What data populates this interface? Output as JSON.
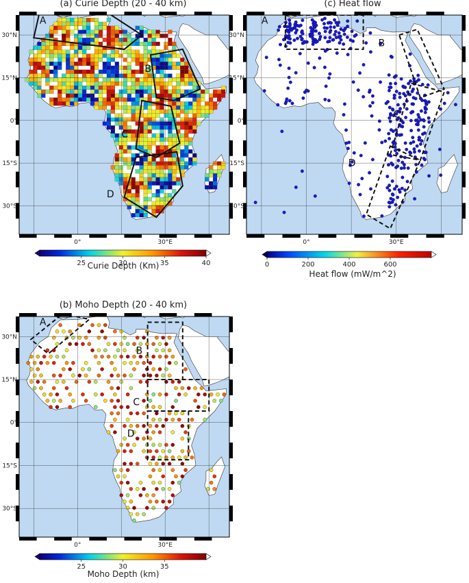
{
  "panels": [
    {
      "id": "a",
      "title": "(a) Curie Depth (20 - 40 km)",
      "colorbar_label": "Curie Depth (Km)",
      "colorbar_ticks": [
        "25",
        "30",
        "35",
        "40"
      ],
      "colorbar_range": [
        20,
        40
      ],
      "lat_labels": [
        "30°N",
        "15°N",
        "0°",
        "15°S",
        "30°S"
      ],
      "lon_labels": [
        "0°",
        "30°E"
      ],
      "regions": [
        "A",
        "B",
        "C",
        "D"
      ],
      "style": "grid"
    },
    {
      "id": "c",
      "title": "(c) Heat flow",
      "colorbar_label": "Heat flow (mW/m^2)",
      "colorbar_ticks": [
        "0",
        "200",
        "400",
        "600"
      ],
      "colorbar_range": [
        0,
        800
      ],
      "lat_labels": [
        "30°N",
        "15°N",
        "0°",
        "15°S",
        "30°S"
      ],
      "lon_labels": [
        "0°",
        "30°E"
      ],
      "regions": [
        "A",
        "B",
        "C",
        "D"
      ],
      "style": "points"
    },
    {
      "id": "b",
      "title": "(b) Moho Depth (20 - 40 km)",
      "colorbar_label": "Moho Depth (km)",
      "colorbar_ticks": [
        "25",
        "30",
        "35"
      ],
      "colorbar_range": [
        20,
        40
      ],
      "lat_labels": [
        "30°N",
        "15°N",
        "0°",
        "15°S",
        "30°S"
      ],
      "lon_labels": [
        "0°",
        "30°E"
      ],
      "regions": [
        "A",
        "B",
        "C",
        "D"
      ],
      "style": "circles"
    }
  ],
  "colors": {
    "ocean": "#bfd9f2",
    "land": "#ffffff",
    "heat_points": "#1a1ac8"
  }
}
